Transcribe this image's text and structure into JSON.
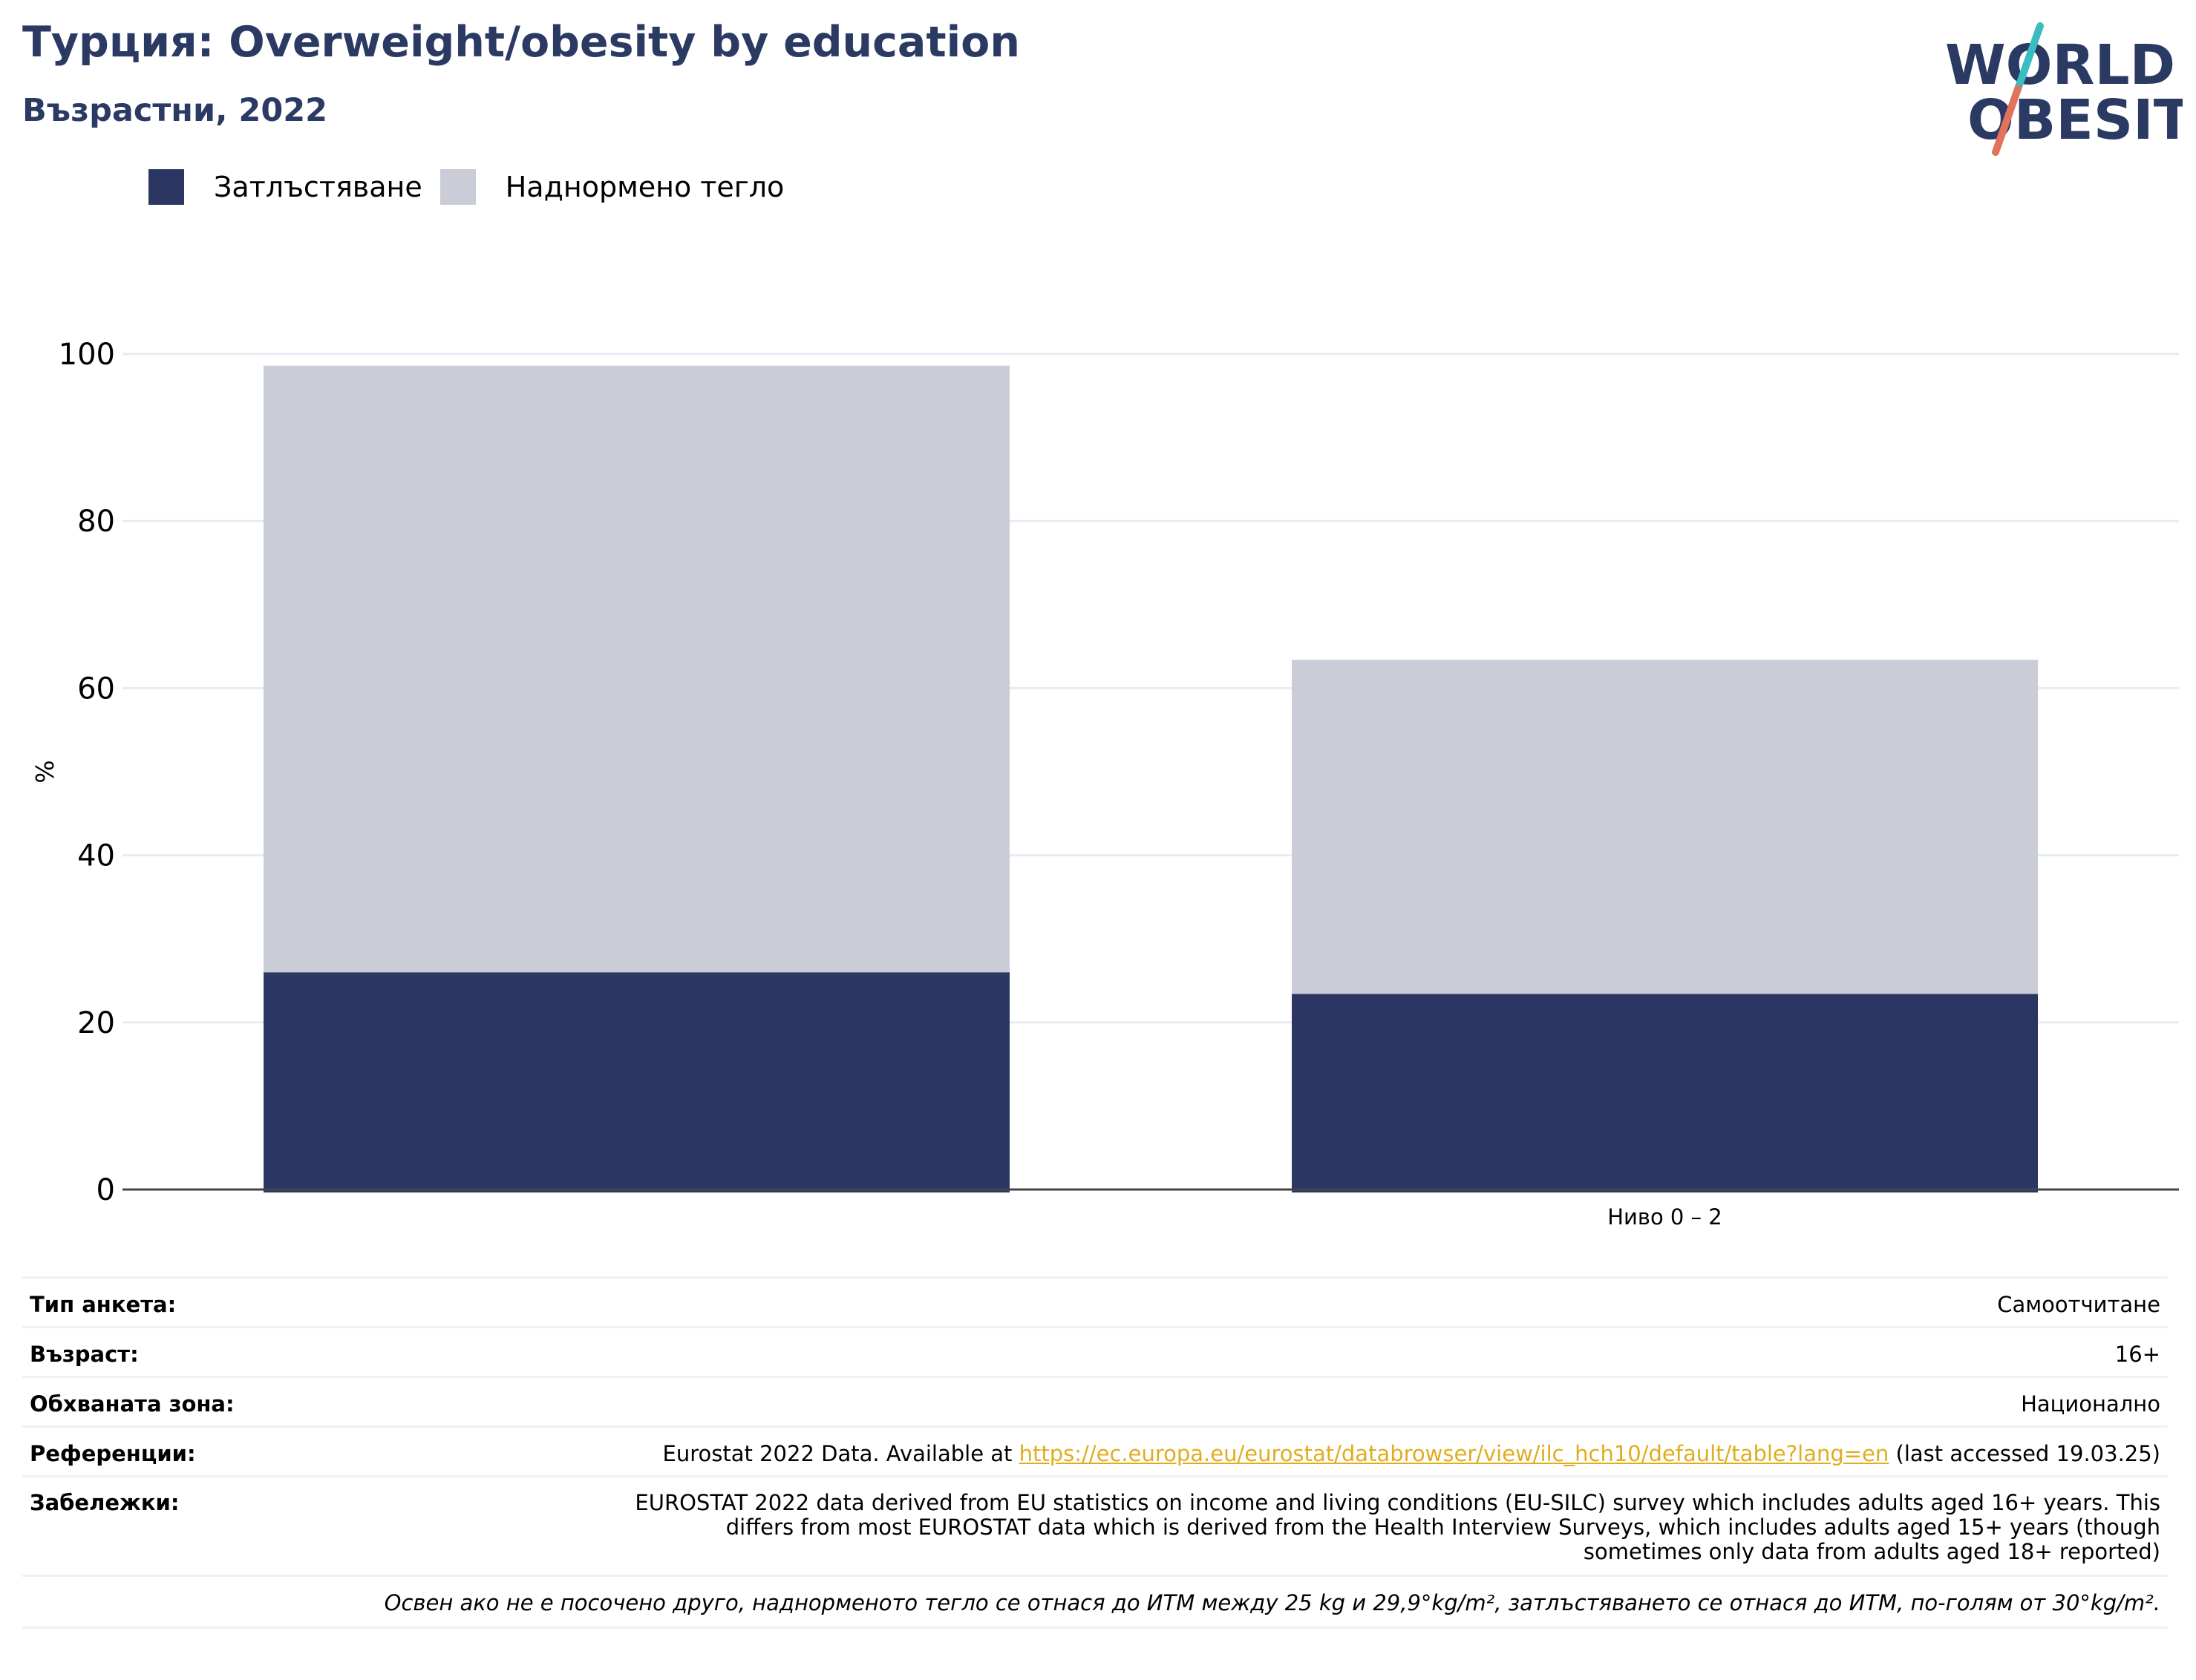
{
  "header": {
    "title": "Турция: Overweight/obesity by education",
    "subtitle": "Възрастни, 2022"
  },
  "logo": {
    "line1": "WORLD",
    "line2": "OBESITY"
  },
  "colors": {
    "obesity": "#2b3762",
    "overweight": "#cacdd8",
    "title": "#2b3a63",
    "link": "#e0ad1e",
    "logo_text": "#2b3a63",
    "logo_slash_top": "#3bbcc0",
    "logo_slash_bottom": "#e2725b"
  },
  "legend": [
    {
      "label": "Затлъстяване",
      "color": "#2b3762"
    },
    {
      "label": "Наднормено тегло",
      "color": "#cacdd8"
    }
  ],
  "chart_data": {
    "type": "bar",
    "stacked": true,
    "categories": [
      "",
      "Ниво 0 – 2"
    ],
    "series": [
      {
        "name": "Затлъстяване",
        "values": [
          26,
          23.4
        ]
      },
      {
        "name": "Наднормено тегло",
        "values": [
          72.6,
          40
        ]
      }
    ],
    "ylabel": "%",
    "ylim": [
      0,
      100
    ],
    "yticks": [
      0,
      20,
      40,
      60,
      80,
      100
    ],
    "grid": true,
    "legend_position": "top-left"
  },
  "info": {
    "rows": [
      {
        "key": "Тип анкета:",
        "value": "Самоотчитане"
      },
      {
        "key": "Възраст:",
        "value": "16+"
      },
      {
        "key": "Обхваната зона:",
        "value": "Национално"
      }
    ],
    "references": {
      "key": "Референции:",
      "prefix": "Eurostat 2022 Data. Available at ",
      "link": "https://ec.europa.eu/eurostat/databrowser/view/ilc_hch10/default/table?lang=en",
      "suffix": " (last accessed 19.03.25)"
    },
    "notes": {
      "key": "Забележки:",
      "line1": "EUROSTAT 2022 data derived from EU statistics on income and living conditions (EU-SILC) survey which includes adults aged 16+ years. This",
      "line2": "differs from most EUROSTAT data which is derived from the Health Interview Surveys, which includes adults aged 15+ years (though",
      "line3": "sometimes only data from adults aged 18+ reported)"
    },
    "footnote": "Освен ако не е посочено друго, наднорменото тегло се отнася до ИТМ между 25 kg и 29,9°kg/m², затлъстяването се отнася до ИТМ, по-голям от 30°kg/m²."
  }
}
